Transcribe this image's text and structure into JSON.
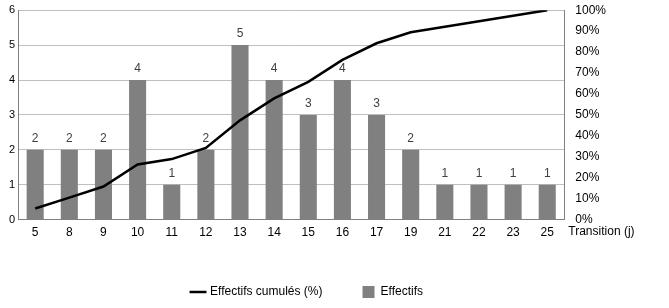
{
  "chart_data": {
    "type": "bar",
    "x_label": "Transition (j)",
    "categories": [
      "5",
      "8",
      "9",
      "10",
      "11",
      "12",
      "13",
      "14",
      "15",
      "16",
      "17",
      "19",
      "21",
      "22",
      "23",
      "25"
    ],
    "series": [
      {
        "name": "Effectifs",
        "type": "bar",
        "color": "#808080",
        "data_labels": true,
        "values": [
          2,
          2,
          2,
          4,
          1,
          2,
          5,
          4,
          3,
          4,
          3,
          2,
          1,
          1,
          1,
          1
        ]
      },
      {
        "name": "Effectifs cumulés (%)",
        "type": "line",
        "color": "#000000",
        "axis": "y2",
        "values": [
          5.3,
          10.5,
          15.8,
          26.3,
          28.9,
          34.2,
          47.4,
          57.9,
          65.8,
          76.3,
          84.2,
          89.5,
          92.1,
          94.7,
          97.4,
          100
        ]
      }
    ],
    "ylim": [
      0,
      6
    ],
    "yticks": [
      0,
      1,
      2,
      3,
      4,
      5,
      6
    ],
    "y2lim": [
      0,
      100
    ],
    "y2ticks": [
      {
        "value": 0,
        "label": "0%"
      },
      {
        "value": 10,
        "label": "10%"
      },
      {
        "value": 20,
        "label": "20%"
      },
      {
        "value": 30,
        "label": "30%"
      },
      {
        "value": 40,
        "label": "40%"
      },
      {
        "value": 50,
        "label": "50%"
      },
      {
        "value": 60,
        "label": "60%"
      },
      {
        "value": 70,
        "label": "70%"
      },
      {
        "value": 80,
        "label": "80%"
      },
      {
        "value": 90,
        "label": "90%"
      },
      {
        "value": 100,
        "label": "100%"
      }
    ],
    "grid": true,
    "legend": "bottom"
  }
}
